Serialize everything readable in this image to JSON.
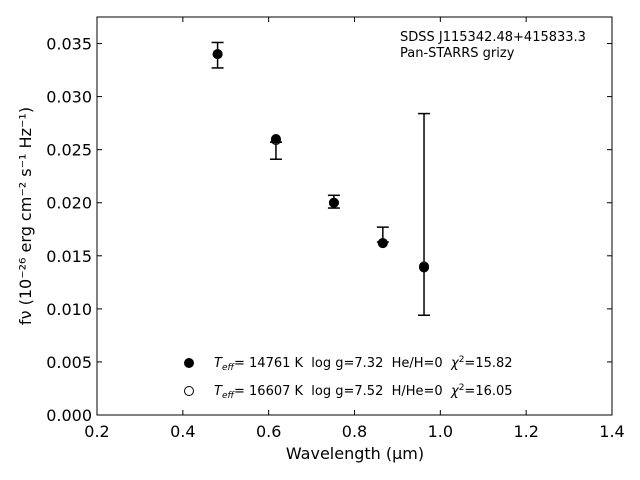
{
  "chart_data": {
    "type": "scatter",
    "xlabel": "Wavelength (μm)",
    "ylabel": "fν (10⁻²⁶ erg cm⁻² s⁻¹ Hz⁻¹)",
    "xlim": [
      0.2,
      1.4
    ],
    "ylim": [
      0.0,
      0.0375
    ],
    "xticks": [
      "0.2",
      "0.4",
      "0.6",
      "0.8",
      "1.0",
      "1.2",
      "1.4"
    ],
    "yticks": [
      "0.000",
      "0.005",
      "0.010",
      "0.015",
      "0.020",
      "0.025",
      "0.030",
      "0.035"
    ],
    "annotation": {
      "line1": "SDSS J115342.48+415833.3",
      "line2": "Pan-STARRS grizy"
    },
    "observed": {
      "x": [
        0.481,
        0.617,
        0.752,
        0.866,
        0.962
      ],
      "y": [
        0.0339,
        0.0249,
        0.0201,
        0.017,
        0.0189
      ],
      "err": [
        0.0012,
        0.0008,
        0.0006,
        0.0007,
        0.0095
      ]
    },
    "series": [
      {
        "name": "T_eff= 14761 K  log g=7.32  He/H=0  χ²=15.82",
        "marker": "filled",
        "x": [
          0.481,
          0.617,
          0.752,
          0.866,
          0.962
        ],
        "y": [
          0.034,
          0.026,
          0.02,
          0.0162,
          0.0139
        ]
      },
      {
        "name": "T_eff= 16607 K  log g=7.52  H/He=0  χ²=16.05",
        "marker": "open",
        "x": [
          0.481,
          0.617,
          0.752,
          0.866,
          0.962
        ],
        "y": [
          0.034,
          0.0259,
          0.02,
          0.0162,
          0.014
        ]
      }
    ],
    "legend_placement": "lower-center",
    "legend": [
      {
        "teff_value": "= 14761 K",
        "rest": "  log g=7.32  He/H=0  ",
        "chi": "=15.82"
      },
      {
        "teff_value": "= 16607 K",
        "rest": "  log g=7.52  H/He=0  ",
        "chi": "=16.05"
      }
    ],
    "grid": false
  }
}
